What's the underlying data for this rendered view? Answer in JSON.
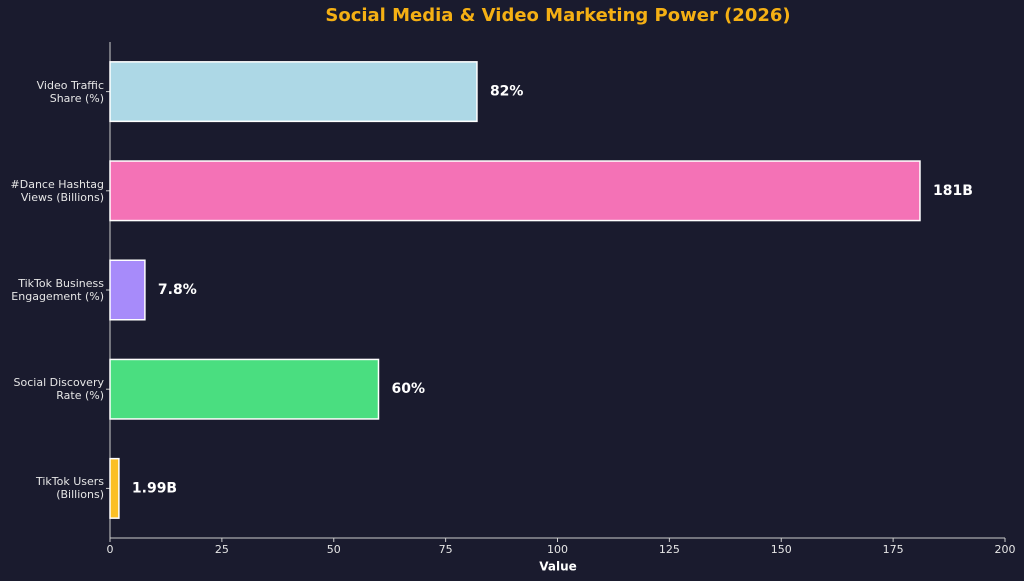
{
  "chart_data": {
    "type": "barh",
    "title": "Social Media & Video Marketing Power (2026)",
    "categories": [
      "Video Traffic\nShare (%)",
      "#Dance Hashtag\nViews (Billions)",
      "TikTok Business\nEngagement (%)",
      "Social Discovery\nRate (%)",
      "TikTok Users\n(Billions)"
    ],
    "values": [
      82,
      181,
      7.8,
      60,
      1.99
    ],
    "value_labels": [
      "82%",
      "181B",
      "7.8%",
      "60%",
      "1.99B"
    ],
    "colors": [
      "#add8e6",
      "#f472b6",
      "#a78bfa",
      "#4ade80",
      "#fbbf24"
    ],
    "xlabel": "Value",
    "xlim": [
      0,
      200
    ],
    "xticks": [
      0,
      25,
      50,
      75,
      100,
      125,
      150,
      175,
      200
    ]
  }
}
